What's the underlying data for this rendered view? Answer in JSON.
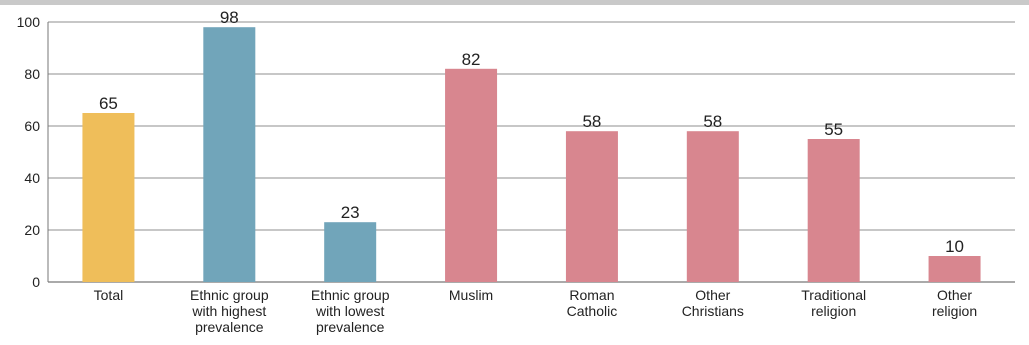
{
  "chart_data": {
    "type": "bar",
    "categories": [
      "Total",
      "Ethnic group with highest prevalence",
      "Ethnic group with lowest prevalence",
      "Muslim",
      "Roman Catholic",
      "Other Christians",
      "Traditional religion",
      "Other religion"
    ],
    "category_lines": [
      [
        "Total"
      ],
      [
        "Ethnic group",
        "with highest",
        "prevalence"
      ],
      [
        "Ethnic group",
        "with lowest",
        "prevalence"
      ],
      [
        "Muslim"
      ],
      [
        "Roman",
        "Catholic"
      ],
      [
        "Other",
        "Christians"
      ],
      [
        "Traditional",
        "religion"
      ],
      [
        "Other",
        "religion"
      ]
    ],
    "values": [
      65,
      98,
      23,
      82,
      58,
      58,
      55,
      10
    ],
    "data_labels": [
      "65",
      "98",
      "23",
      "82",
      "58",
      "58",
      "55",
      "10"
    ],
    "bar_colors": [
      "#efbe5a",
      "#71a5ba",
      "#71a5ba",
      "#d8868f",
      "#d8868f",
      "#d8868f",
      "#d8868f",
      "#d8868f"
    ],
    "ylim": [
      0,
      100
    ],
    "yticks": [
      "0",
      "20",
      "40",
      "60",
      "80",
      "100"
    ],
    "grid": true,
    "title": "",
    "xlabel": "",
    "ylabel": ""
  }
}
